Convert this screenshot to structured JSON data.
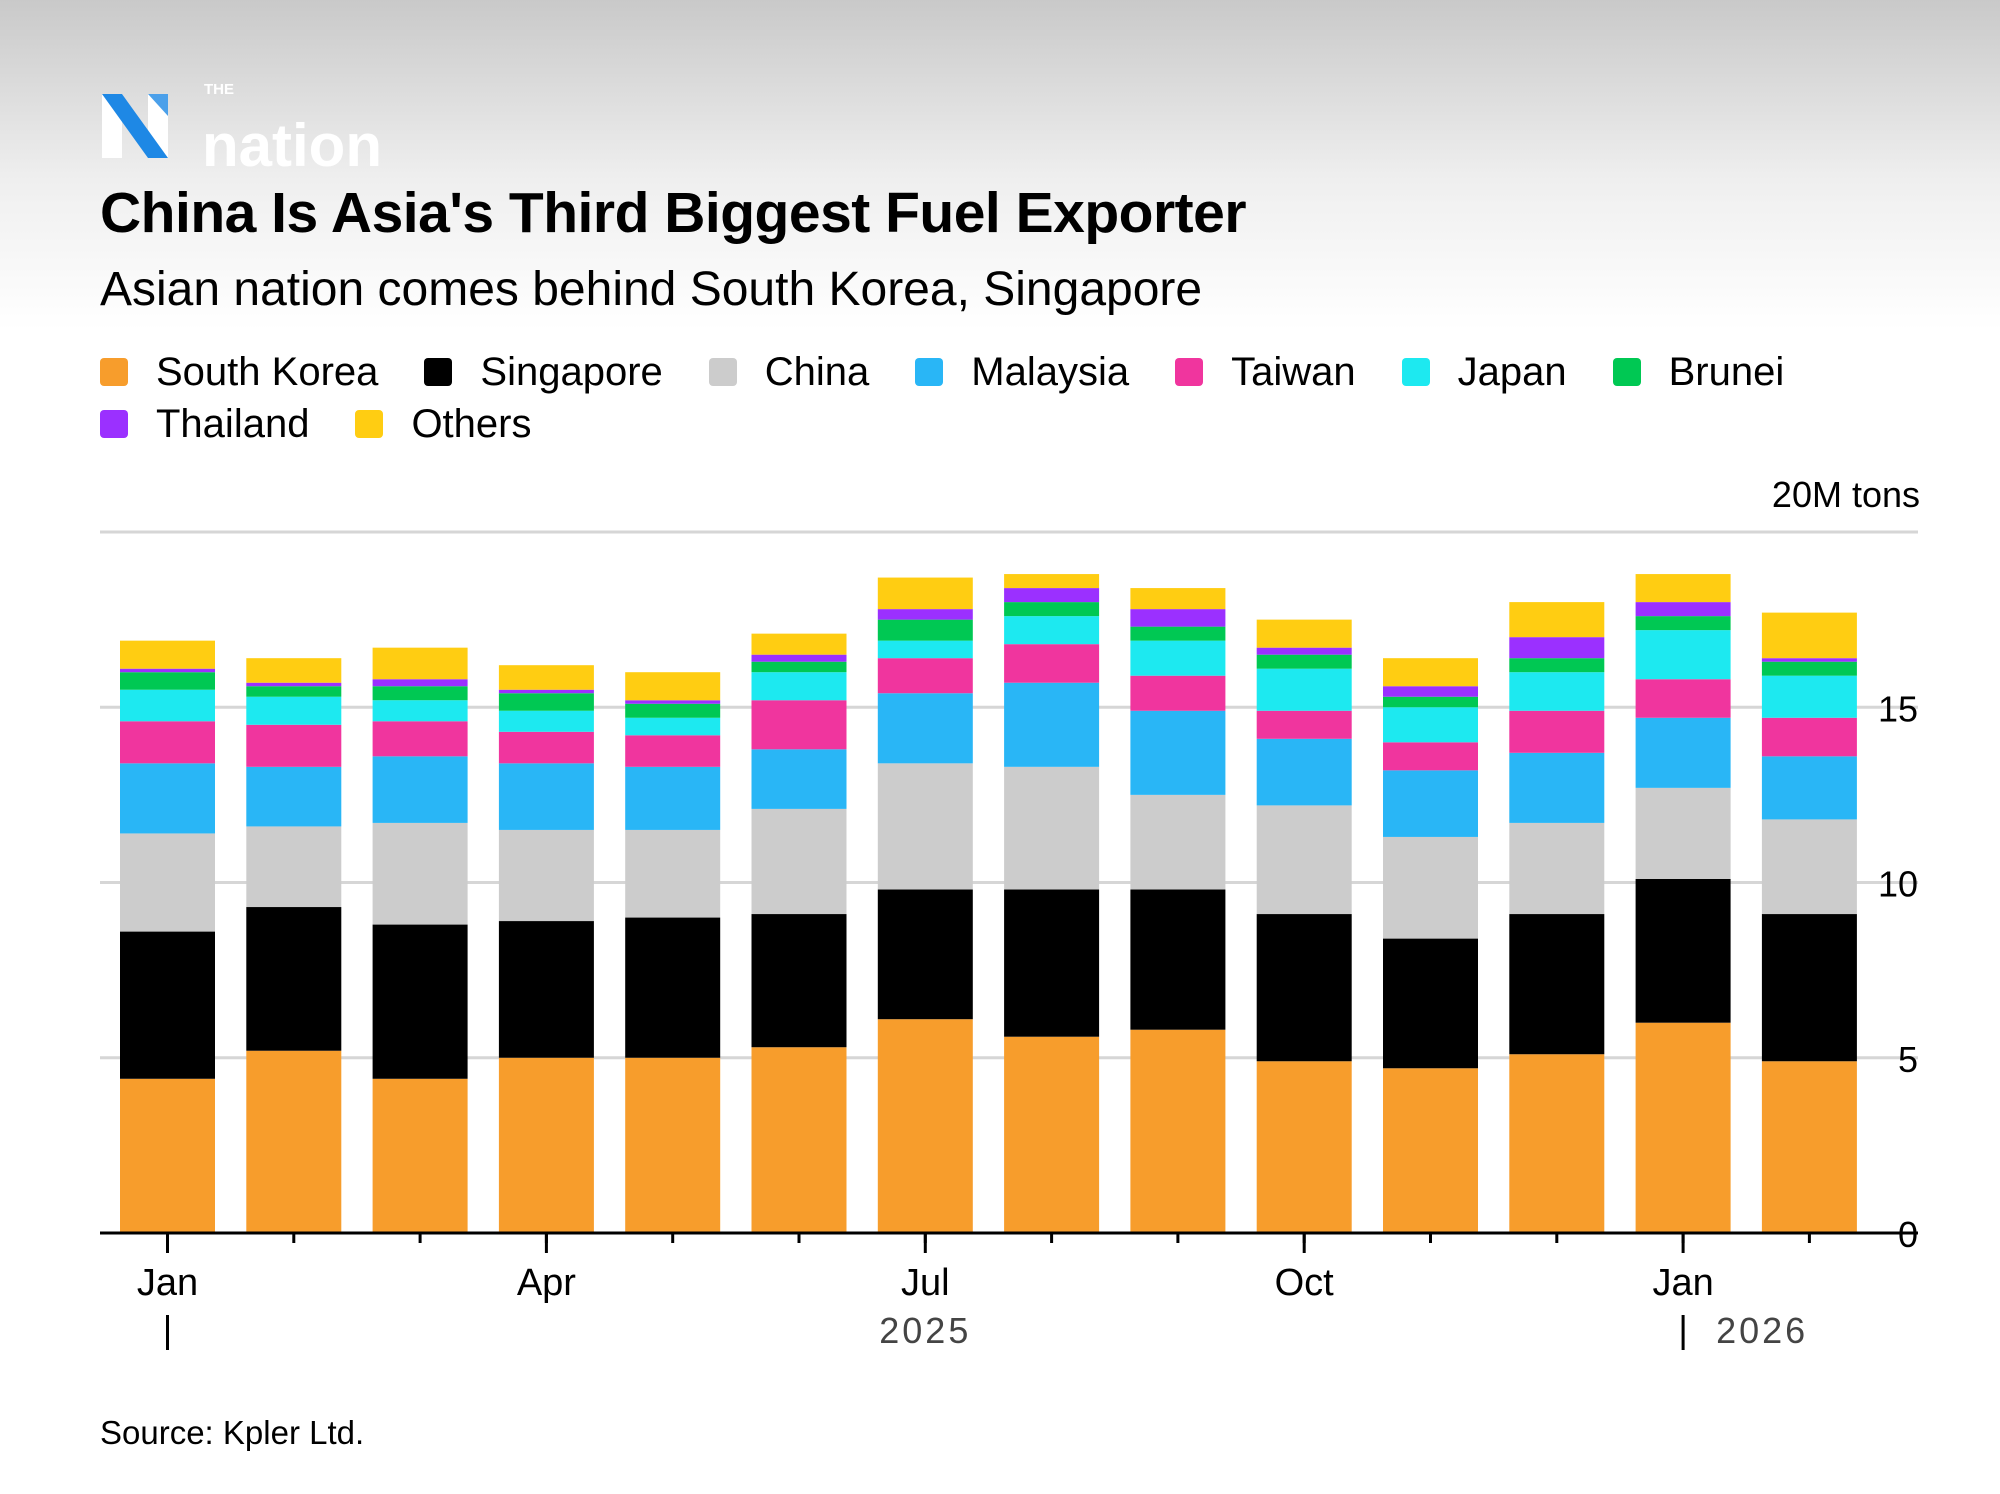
{
  "logo": {
    "text": "THE nation",
    "colors": {
      "icon_blue": "#1e88e5",
      "text": "#ffffff"
    }
  },
  "title": "China Is Asia's Third Biggest Fuel Exporter",
  "subtitle": "Asian nation comes behind South Korea, Singapore",
  "source": "Source: Kpler Ltd.",
  "chart_data": {
    "type": "bar",
    "stacked": true,
    "title": "China Is Asia's Third Biggest Fuel Exporter",
    "subtitle": "Asian nation comes behind South Korea, Singapore",
    "unit_label": "20M tons",
    "ylim": [
      0,
      20
    ],
    "yticks": [
      "0",
      "5",
      "10",
      "15"
    ],
    "y_axis_position": "right",
    "grid": true,
    "legend_position": "top-left",
    "categories": [
      "Jan 2025",
      "Feb 2025",
      "Mar 2025",
      "Apr 2025",
      "May 2025",
      "Jun 2025",
      "Jul 2025",
      "Aug 2025",
      "Sep 2025",
      "Oct 2025",
      "Nov 2025",
      "Dec 2025",
      "Jan 2026",
      "Feb 2026"
    ],
    "xtick_labels": [
      {
        "label": "Jan",
        "index": 0
      },
      {
        "label": "Apr",
        "index": 3
      },
      {
        "label": "Jul",
        "index": 6
      },
      {
        "label": "Oct",
        "index": 9
      },
      {
        "label": "Jan",
        "index": 12
      }
    ],
    "year_labels": [
      {
        "label": "2025",
        "index": 6
      },
      {
        "label": "2026",
        "index": 12
      }
    ],
    "series": [
      {
        "name": "South Korea",
        "color": "#f79d2c",
        "values": [
          4.4,
          5.2,
          4.4,
          5.0,
          5.0,
          5.3,
          6.1,
          5.6,
          5.8,
          4.9,
          4.7,
          5.1,
          6.0,
          4.9
        ]
      },
      {
        "name": "Singapore",
        "color": "#000000",
        "values": [
          4.2,
          4.1,
          4.4,
          3.9,
          4.0,
          3.8,
          3.7,
          4.2,
          4.0,
          4.2,
          3.7,
          4.0,
          4.1,
          4.2
        ]
      },
      {
        "name": "China",
        "color": "#cccccc",
        "values": [
          2.8,
          2.3,
          2.9,
          2.6,
          2.5,
          3.0,
          3.6,
          3.5,
          2.7,
          3.1,
          2.9,
          2.6,
          2.6,
          2.7
        ]
      },
      {
        "name": "Malaysia",
        "color": "#29b6f6",
        "values": [
          2.0,
          1.7,
          1.9,
          1.9,
          1.8,
          1.7,
          2.0,
          2.4,
          2.4,
          1.9,
          1.9,
          2.0,
          2.0,
          1.8
        ]
      },
      {
        "name": "Taiwan",
        "color": "#f0359e",
        "values": [
          1.2,
          1.2,
          1.0,
          0.9,
          0.9,
          1.4,
          1.0,
          1.1,
          1.0,
          0.8,
          0.8,
          1.2,
          1.1,
          1.1
        ]
      },
      {
        "name": "Japan",
        "color": "#1de9f0",
        "values": [
          0.9,
          0.8,
          0.6,
          0.6,
          0.5,
          0.8,
          0.5,
          0.8,
          1.0,
          1.2,
          1.0,
          1.1,
          1.4,
          1.2
        ]
      },
      {
        "name": "Brunei",
        "color": "#00c853",
        "values": [
          0.5,
          0.3,
          0.4,
          0.5,
          0.4,
          0.3,
          0.6,
          0.4,
          0.4,
          0.4,
          0.3,
          0.4,
          0.4,
          0.4
        ]
      },
      {
        "name": "Thailand",
        "color": "#9b30ff",
        "values": [
          0.1,
          0.1,
          0.2,
          0.1,
          0.1,
          0.2,
          0.3,
          0.4,
          0.5,
          0.2,
          0.3,
          0.6,
          0.4,
          0.1
        ]
      },
      {
        "name": "Others",
        "color": "#ffcd12",
        "values": [
          0.8,
          0.7,
          0.9,
          0.7,
          0.8,
          0.6,
          0.9,
          0.4,
          0.6,
          0.8,
          0.8,
          1.0,
          0.8,
          1.3
        ]
      }
    ]
  }
}
